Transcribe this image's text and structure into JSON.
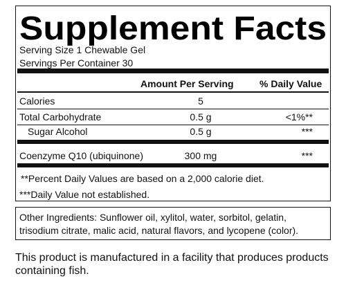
{
  "header": {
    "title": "Supplement Facts",
    "serving_size": "Serving Size 1 Chewable Gel",
    "servings_per_container": "Servings Per Container 30"
  },
  "table": {
    "columns": [
      "Amount Per Serving",
      "% Daily Value"
    ],
    "rows": [
      {
        "name": "Calories",
        "amount": "5"
      },
      {
        "name": "Total Carbohydrate",
        "amount": "0.5 g",
        "dv": "<1%**"
      },
      {
        "name": "Sugar Alcohol",
        "amount": "0.5 g",
        "dv": "***"
      },
      {
        "name": "Coenzyme Q10 (ubiquinone)",
        "amount": "300 mg",
        "dv": "***"
      }
    ]
  },
  "footnotes": [
    "**Percent Daily Values are based on a 2,000 calorie diet.",
    "***Daily Value not established."
  ],
  "other_ingredients": [
    "Other Ingredients: Sunflower oil, xylitol, water, sorbitol, gelatin,",
    "trisodium citrate, malic acid, natural flavors, and lycopene (color)."
  ],
  "note": [
    "This product is manufactured in a facility that produces products",
    "containing fish."
  ]
}
